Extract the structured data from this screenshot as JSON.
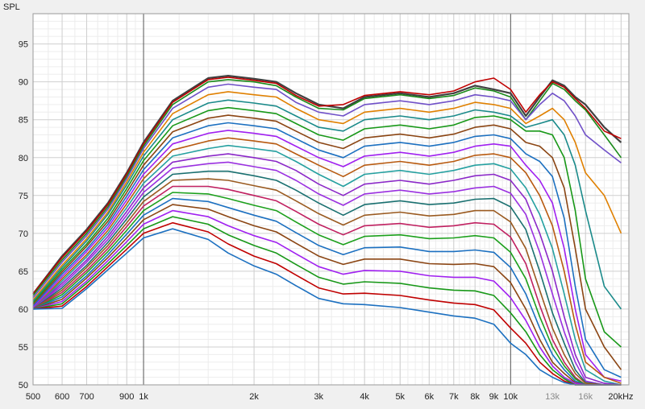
{
  "chart_data": {
    "type": "line",
    "title": "",
    "ylabel": "SPL",
    "xlabel": "",
    "xscale": "log",
    "xlim": [
      500,
      21000
    ],
    "ylim": [
      50,
      99
    ],
    "grid": true,
    "legend": "none",
    "y_ticks": [
      {
        "value": 50,
        "label": "50"
      },
      {
        "value": 55,
        "label": "55"
      },
      {
        "value": 60,
        "label": "60"
      },
      {
        "value": 65,
        "label": "65"
      },
      {
        "value": 70,
        "label": "70"
      },
      {
        "value": 75,
        "label": "75"
      },
      {
        "value": 80,
        "label": "80"
      },
      {
        "value": 85,
        "label": "85"
      },
      {
        "value": 90,
        "label": "90"
      },
      {
        "value": 95,
        "label": "95"
      }
    ],
    "x_ticks": [
      {
        "value": 500,
        "label": "500",
        "faint": false
      },
      {
        "value": 600,
        "label": "600",
        "faint": false
      },
      {
        "value": 700,
        "label": "700",
        "faint": false
      },
      {
        "value": 900,
        "label": "900",
        "faint": false
      },
      {
        "value": 1000,
        "label": "1k",
        "faint": false
      },
      {
        "value": 2000,
        "label": "2k",
        "faint": false
      },
      {
        "value": 3000,
        "label": "3k",
        "faint": false
      },
      {
        "value": 4000,
        "label": "4k",
        "faint": false
      },
      {
        "value": 5000,
        "label": "5k",
        "faint": false
      },
      {
        "value": 6000,
        "label": "6k",
        "faint": false
      },
      {
        "value": 7000,
        "label": "7k",
        "faint": false
      },
      {
        "value": 8000,
        "label": "8k",
        "faint": false
      },
      {
        "value": 9000,
        "label": "9k",
        "faint": false
      },
      {
        "value": 10000,
        "label": "10k",
        "faint": false
      },
      {
        "value": 13000,
        "label": "13k",
        "faint": true
      },
      {
        "value": 16000,
        "label": "16k",
        "faint": true
      },
      {
        "value": 20000,
        "label": "20kHz",
        "faint": false
      }
    ],
    "x": [
      500,
      600,
      700,
      800,
      900,
      1000,
      1200,
      1500,
      1700,
      2000,
      2300,
      2600,
      3000,
      3500,
      4000,
      5000,
      6000,
      7000,
      8000,
      9000,
      10000,
      11000,
      12000,
      13000,
      14000,
      15000,
      16000,
      18000,
      20000
    ],
    "series": [
      {
        "color": "#404040",
        "values": [
          62.0,
          67.0,
          70.5,
          74.0,
          78.0,
          82.0,
          87.5,
          90.5,
          90.8,
          90.4,
          90.0,
          88.5,
          87.0,
          86.5,
          88.0,
          88.5,
          88.0,
          88.5,
          89.5,
          89.0,
          88.5,
          85.5,
          88.0,
          90.2,
          89.5,
          88.0,
          87.0,
          84.0,
          82.0
        ]
      },
      {
        "color": "#c00000",
        "values": [
          62.0,
          66.8,
          70.3,
          73.8,
          77.8,
          81.8,
          87.3,
          90.3,
          90.6,
          90.2,
          89.8,
          88.2,
          86.8,
          87.0,
          88.2,
          88.7,
          88.3,
          88.8,
          90.0,
          90.5,
          89.0,
          86.0,
          88.3,
          90.0,
          89.3,
          87.8,
          86.5,
          83.5,
          82.5
        ]
      },
      {
        "color": "#1a8a1a",
        "values": [
          61.8,
          66.5,
          70.0,
          73.5,
          77.5,
          81.5,
          87.0,
          90.0,
          90.3,
          90.0,
          89.5,
          88.0,
          86.5,
          86.3,
          87.8,
          88.3,
          87.8,
          88.2,
          89.2,
          88.8,
          88.0,
          85.0,
          87.5,
          89.8,
          89.0,
          87.5,
          86.3,
          83.0,
          80.0
        ]
      },
      {
        "color": "#7050c8",
        "values": [
          61.5,
          66.2,
          69.7,
          73.2,
          77.2,
          81.2,
          86.5,
          89.3,
          89.7,
          89.3,
          89.0,
          87.3,
          86.0,
          85.5,
          87.0,
          87.5,
          87.0,
          87.5,
          88.3,
          88.0,
          87.5,
          85.0,
          87.0,
          88.5,
          87.5,
          85.5,
          83.0,
          81.0,
          79.3
        ]
      },
      {
        "color": "#e08000",
        "values": [
          61.2,
          65.8,
          69.3,
          72.8,
          76.8,
          80.7,
          85.8,
          88.3,
          88.7,
          88.3,
          88.0,
          86.5,
          85.0,
          84.5,
          86.0,
          86.5,
          86.0,
          86.5,
          87.3,
          87.0,
          86.5,
          84.5,
          85.5,
          86.5,
          85.0,
          82.0,
          78.0,
          75.0,
          70.0
        ]
      },
      {
        "color": "#1a8a8a",
        "values": [
          61.0,
          65.5,
          69.0,
          72.5,
          76.4,
          80.2,
          85.0,
          87.2,
          87.6,
          87.2,
          86.8,
          85.5,
          84.0,
          83.5,
          85.0,
          85.5,
          85.0,
          85.5,
          86.3,
          86.0,
          85.5,
          84.0,
          84.5,
          85.0,
          83.0,
          79.0,
          73.0,
          63.0,
          60.0
        ]
      },
      {
        "color": "#189818",
        "values": [
          60.8,
          65.2,
          68.6,
          72.0,
          75.9,
          79.6,
          84.2,
          86.2,
          86.6,
          86.2,
          85.8,
          84.5,
          83.0,
          82.3,
          83.8,
          84.3,
          83.8,
          84.3,
          85.3,
          85.5,
          85.0,
          83.5,
          83.5,
          83.0,
          80.0,
          73.0,
          64.0,
          57.0,
          55.0
        ]
      },
      {
        "color": "#8b4513",
        "values": [
          60.6,
          64.9,
          68.3,
          71.6,
          75.4,
          79.0,
          83.4,
          85.2,
          85.6,
          85.2,
          84.8,
          83.5,
          82.0,
          81.2,
          82.6,
          83.1,
          82.6,
          83.1,
          84.0,
          84.3,
          83.8,
          82.0,
          81.5,
          80.0,
          76.0,
          68.0,
          60.0,
          55.0,
          52.0
        ]
      },
      {
        "color": "#1c70c0",
        "values": [
          60.4,
          64.6,
          67.9,
          71.2,
          74.9,
          78.4,
          82.6,
          84.2,
          84.6,
          84.2,
          83.8,
          82.5,
          81.0,
          80.0,
          81.5,
          82.0,
          81.5,
          82.0,
          82.8,
          83.0,
          82.5,
          80.5,
          79.5,
          77.5,
          72.0,
          63.0,
          56.0,
          52.0,
          51.0
        ]
      },
      {
        "color": "#a020f0",
        "values": [
          60.2,
          64.3,
          67.6,
          70.8,
          74.4,
          77.8,
          81.8,
          83.2,
          83.6,
          83.2,
          82.8,
          81.5,
          80.0,
          78.8,
          80.2,
          80.7,
          80.2,
          80.7,
          81.5,
          81.8,
          81.5,
          79.0,
          77.0,
          74.0,
          68.0,
          60.0,
          54.0,
          51.0,
          50.5
        ]
      },
      {
        "color": "#b85a10",
        "values": [
          60.0,
          64.0,
          67.2,
          70.4,
          73.9,
          77.2,
          81.0,
          82.2,
          82.6,
          82.2,
          81.8,
          80.5,
          79.0,
          77.5,
          79.0,
          79.5,
          79.0,
          79.5,
          80.3,
          80.5,
          80.0,
          78.0,
          75.0,
          71.0,
          65.0,
          58.0,
          53.0,
          51.0,
          50.2
        ]
      },
      {
        "color": "#25a0a0",
        "values": [
          60.0,
          63.7,
          66.9,
          70.0,
          73.4,
          76.6,
          80.2,
          81.2,
          81.6,
          81.2,
          80.8,
          79.5,
          77.8,
          76.2,
          77.8,
          78.3,
          77.8,
          78.3,
          79.0,
          79.2,
          78.5,
          76.0,
          72.5,
          68.0,
          62.0,
          56.0,
          52.0,
          50.5,
          50.0
        ]
      },
      {
        "color": "#8b28c8",
        "values": [
          60.0,
          63.4,
          66.5,
          69.6,
          72.9,
          76.0,
          79.4,
          80.2,
          80.5,
          80.0,
          79.5,
          78.3,
          76.5,
          75.0,
          76.5,
          77.0,
          76.5,
          77.0,
          77.6,
          77.8,
          77.0,
          74.5,
          70.0,
          65.0,
          59.0,
          54.0,
          51.0,
          50.2,
          50.0
        ]
      },
      {
        "color": "#9a30e0",
        "values": [
          60.0,
          63.1,
          66.2,
          69.2,
          72.4,
          75.4,
          78.6,
          79.2,
          79.4,
          78.8,
          78.3,
          77.0,
          75.2,
          73.7,
          75.2,
          75.7,
          75.2,
          75.5,
          76.0,
          76.2,
          75.3,
          72.5,
          67.5,
          62.0,
          57.0,
          53.0,
          50.5,
          50.0,
          50.0
        ]
      },
      {
        "color": "#1a7070",
        "values": [
          60.0,
          62.8,
          65.8,
          68.8,
          71.9,
          74.8,
          77.8,
          78.2,
          78.2,
          77.6,
          77.0,
          75.7,
          74.0,
          72.4,
          73.8,
          74.3,
          73.8,
          74.0,
          74.5,
          74.6,
          73.5,
          70.5,
          65.0,
          59.5,
          55.5,
          52.0,
          50.3,
          50.0,
          50.0
        ]
      },
      {
        "color": "#9a5a20",
        "values": [
          60.0,
          62.5,
          65.5,
          68.4,
          71.4,
          74.2,
          77.0,
          77.2,
          77.0,
          76.3,
          75.7,
          74.3,
          72.6,
          71.1,
          72.4,
          72.8,
          72.3,
          72.5,
          73.0,
          73.0,
          71.5,
          68.0,
          62.5,
          57.5,
          54.0,
          51.5,
          50.2,
          50.0,
          50.0
        ]
      },
      {
        "color": "#c02060",
        "values": [
          60.0,
          62.2,
          65.1,
          68.0,
          70.9,
          73.6,
          76.2,
          76.2,
          75.8,
          75.0,
          74.3,
          72.9,
          71.2,
          69.8,
          71.0,
          71.3,
          70.8,
          71.0,
          71.4,
          71.2,
          69.5,
          66.0,
          60.5,
          56.0,
          53.0,
          51.0,
          50.0,
          50.0,
          50.0
        ]
      },
      {
        "color": "#1ca01c",
        "values": [
          60.0,
          61.9,
          64.8,
          67.6,
          70.4,
          73.0,
          75.4,
          75.2,
          74.6,
          73.7,
          73.0,
          71.5,
          69.8,
          68.5,
          69.6,
          69.8,
          69.3,
          69.4,
          69.7,
          69.4,
          67.5,
          64.0,
          59.0,
          55.0,
          52.5,
          50.8,
          50.0,
          50.0,
          50.0
        ]
      },
      {
        "color": "#1c70c0",
        "values": [
          60.0,
          61.6,
          64.4,
          67.2,
          69.9,
          72.4,
          74.6,
          74.2,
          73.4,
          72.4,
          71.6,
          70.1,
          68.4,
          67.2,
          68.1,
          68.2,
          67.6,
          67.6,
          67.8,
          67.5,
          65.5,
          62.0,
          57.5,
          54.0,
          52.0,
          50.5,
          50.0,
          50.0,
          50.0
        ]
      },
      {
        "color": "#8b4513",
        "values": [
          60.0,
          61.3,
          64.1,
          66.8,
          69.4,
          71.8,
          73.8,
          73.2,
          72.2,
          71.0,
          70.2,
          68.7,
          67.0,
          65.9,
          66.6,
          66.6,
          66.0,
          65.9,
          66.0,
          65.6,
          63.5,
          60.0,
          56.0,
          53.0,
          51.5,
          50.3,
          50.0,
          50.0,
          50.0
        ]
      },
      {
        "color": "#a020f0",
        "values": [
          60.0,
          61.0,
          63.7,
          66.4,
          68.9,
          71.2,
          73.0,
          72.2,
          71.0,
          69.7,
          68.8,
          67.3,
          65.6,
          64.6,
          65.1,
          65.0,
          64.4,
          64.2,
          64.2,
          63.7,
          61.5,
          58.5,
          55.0,
          52.5,
          51.0,
          50.2,
          50.0,
          50.0,
          50.0
        ]
      },
      {
        "color": "#189818",
        "values": [
          60.0,
          60.7,
          63.4,
          66.0,
          68.4,
          70.6,
          72.2,
          71.2,
          69.8,
          68.4,
          67.4,
          65.9,
          64.2,
          63.3,
          63.6,
          63.4,
          62.8,
          62.5,
          62.4,
          61.8,
          59.5,
          57.0,
          54.0,
          52.0,
          50.8,
          50.0,
          50.0,
          50.0,
          50.0
        ]
      },
      {
        "color": "#c00000",
        "values": [
          60.0,
          60.4,
          63.0,
          65.6,
          67.9,
          70.0,
          71.4,
          70.2,
          68.6,
          67.0,
          66.0,
          64.5,
          62.8,
          62.0,
          62.1,
          61.8,
          61.2,
          60.8,
          60.6,
          59.9,
          57.5,
          55.5,
          53.0,
          51.5,
          50.5,
          50.0,
          50.0,
          50.0,
          50.0
        ]
      },
      {
        "color": "#1c70c0",
        "values": [
          60.0,
          60.1,
          62.7,
          65.2,
          67.4,
          69.4,
          70.6,
          69.2,
          67.4,
          65.7,
          64.6,
          63.1,
          61.4,
          60.7,
          60.6,
          60.2,
          59.6,
          59.1,
          58.8,
          58.0,
          55.5,
          54.0,
          52.0,
          51.0,
          50.3,
          50.0,
          50.0,
          50.0,
          50.0
        ]
      }
    ]
  }
}
